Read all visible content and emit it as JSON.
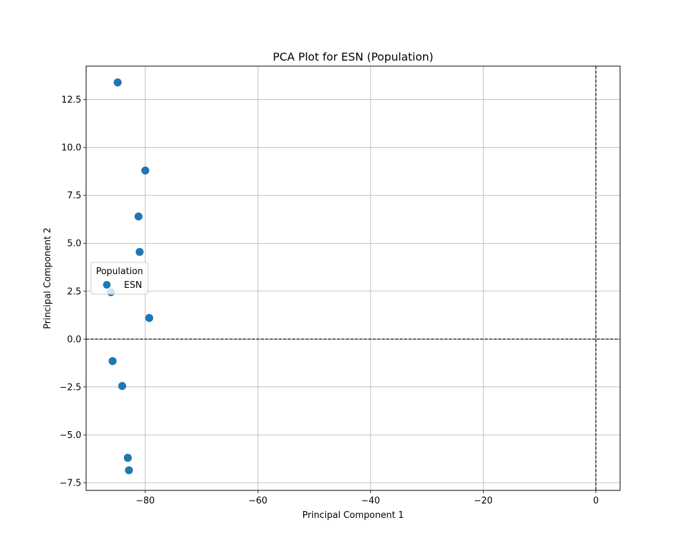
{
  "chart_data": {
    "type": "scatter",
    "title": "PCA Plot for ESN (Population)",
    "xlabel": "Principal Component 1",
    "ylabel": "Principal Component 2",
    "xlim": [
      -90.5,
      4.3
    ],
    "ylim": [
      -7.9,
      14.25
    ],
    "xticks": [
      -80,
      -60,
      -40,
      -20,
      0
    ],
    "xtick_labels": [
      "−80",
      "−60",
      "−40",
      "−20",
      "0"
    ],
    "yticks": [
      -7.5,
      -5.0,
      -2.5,
      0.0,
      2.5,
      5.0,
      7.5,
      10.0,
      12.5
    ],
    "ytick_labels": [
      "−7.5",
      "−5.0",
      "−2.5",
      "0.0",
      "2.5",
      "5.0",
      "7.5",
      "10.0",
      "12.5"
    ],
    "grid": true,
    "reference_lines": {
      "x": 0,
      "y": 0,
      "style": "dashed"
    },
    "legend": {
      "title": "Population",
      "placement": "center-left"
    },
    "series": [
      {
        "name": "ESN",
        "color": "#1f77b4",
        "points": [
          {
            "x": -84.9,
            "y": 13.4
          },
          {
            "x": -80.0,
            "y": 8.8
          },
          {
            "x": -81.2,
            "y": 6.4
          },
          {
            "x": -81.0,
            "y": 4.55
          },
          {
            "x": -86.1,
            "y": 2.45
          },
          {
            "x": -79.3,
            "y": 1.1
          },
          {
            "x": -85.8,
            "y": -1.15
          },
          {
            "x": -84.1,
            "y": -2.45
          },
          {
            "x": -83.1,
            "y": -6.2
          },
          {
            "x": -82.9,
            "y": -6.85
          }
        ]
      }
    ]
  }
}
